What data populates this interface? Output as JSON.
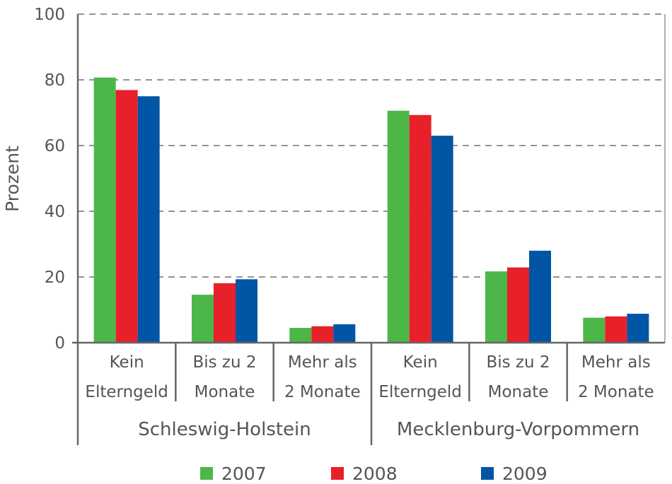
{
  "chart_data": {
    "type": "bar",
    "ylabel": "Prozent",
    "ylim": [
      0,
      100
    ],
    "yticks": [
      0,
      20,
      40,
      60,
      80,
      100
    ],
    "grid": "dashed horizontal",
    "legend_position": "bottom",
    "groups": [
      {
        "name": "Schleswig-Holstein",
        "categories": [
          [
            "Kein",
            "Elterngeld"
          ],
          [
            "Bis zu 2",
            "Monate"
          ],
          [
            "Mehr als",
            "2 Monate"
          ]
        ]
      },
      {
        "name": "Mecklenburg-Vorpommern",
        "categories": [
          [
            "Kein",
            "Elterngeld"
          ],
          [
            "Bis zu 2",
            "Monate"
          ],
          [
            "Mehr als",
            "2 Monate"
          ]
        ]
      }
    ],
    "series": [
      {
        "name": "2007",
        "color": "#4cb748",
        "values": [
          80.7,
          14.6,
          4.5,
          70.6,
          21.7,
          7.6
        ]
      },
      {
        "name": "2008",
        "color": "#e8202a",
        "values": [
          76.9,
          18.1,
          5.0,
          69.3,
          22.9,
          8.0
        ]
      },
      {
        "name": "2009",
        "color": "#0055a4",
        "values": [
          75.0,
          19.3,
          5.6,
          63.0,
          28.0,
          8.8
        ]
      }
    ]
  }
}
